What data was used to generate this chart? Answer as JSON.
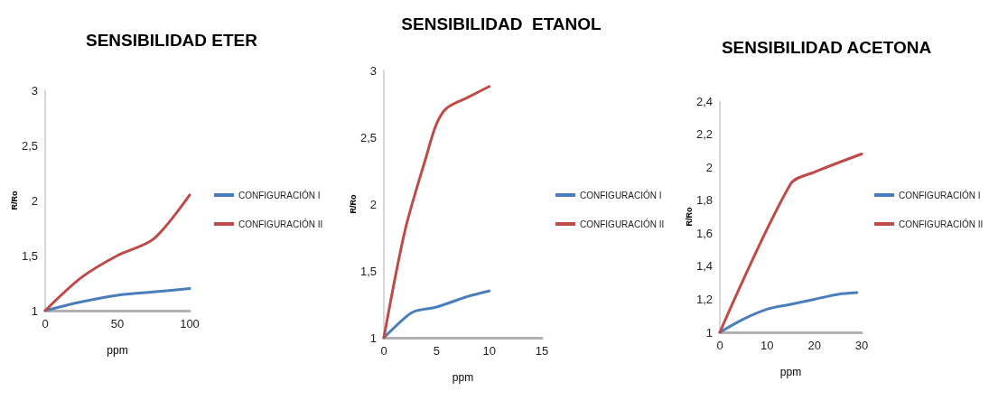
{
  "chart_data": [
    {
      "type": "line",
      "title": "SENSIBILIDAD ETER",
      "xlabel": "ppm",
      "ylabel": "R/Ro",
      "xlim": [
        0,
        100
      ],
      "xticks": [
        0,
        50,
        100
      ],
      "ylim": [
        1,
        3
      ],
      "yticks": [
        1,
        {
          "value": 1.5,
          "label": "1,5"
        },
        2,
        {
          "value": 2.5,
          "label": "2,5"
        },
        3
      ],
      "grid": false,
      "legend": "right",
      "marker": "none",
      "line_style": "solid",
      "series": [
        {
          "name": "CONFIGURACIÓN I",
          "color": "#4a7ebb",
          "x": [
            0,
            25,
            50,
            75,
            100
          ],
          "values": [
            1,
            1.08,
            1.14,
            1.17,
            1.2
          ]
        },
        {
          "name": "CONFIGURACIÓN II",
          "color": "#be4b48",
          "x": [
            0,
            25,
            50,
            75,
            100
          ],
          "values": [
            1,
            1.3,
            1.5,
            1.65,
            2.05
          ]
        }
      ]
    },
    {
      "type": "line",
      "title": "SENSIBILIDAD  ETANOL",
      "xlabel": "ppm",
      "ylabel": "R/Ro",
      "xlim": [
        0,
        15
      ],
      "xticks": [
        0,
        5,
        10,
        15
      ],
      "ylim": [
        1,
        3
      ],
      "yticks": [
        1,
        {
          "value": 1.5,
          "label": "1,5"
        },
        2,
        {
          "value": 2.5,
          "label": "2,5"
        },
        3
      ],
      "grid": false,
      "legend": "right",
      "marker": "none",
      "line_style": "solid",
      "series": [
        {
          "name": "CONFIGURACIÓN I",
          "color": "#4a7ebb",
          "x": [
            0,
            2,
            3,
            5,
            8,
            10
          ],
          "values": [
            1,
            1.15,
            1.2,
            1.23,
            1.31,
            1.35
          ]
        },
        {
          "name": "CONFIGURACIÓN II",
          "color": "#be4b48",
          "x": [
            0,
            2,
            4,
            5,
            6,
            8,
            10
          ],
          "values": [
            1,
            1.8,
            2.35,
            2.6,
            2.72,
            2.8,
            2.88
          ]
        }
      ]
    },
    {
      "type": "line",
      "title": "SENSIBILIDAD ACETONA",
      "xlabel": "ppm",
      "ylabel": "R/Ro",
      "xlim": [
        0,
        30
      ],
      "xticks": [
        0,
        10,
        20,
        30
      ],
      "ylim": [
        1,
        2.4
      ],
      "yticks": [
        1,
        {
          "value": 1.2,
          "label": "1,2"
        },
        {
          "value": 1.4,
          "label": "1,4"
        },
        {
          "value": 1.6,
          "label": "1,6"
        },
        {
          "value": 1.8,
          "label": "1,8"
        },
        2,
        {
          "value": 2.2,
          "label": "2,2"
        },
        {
          "value": 2.4,
          "label": "2,4"
        }
      ],
      "grid": false,
      "legend": "right",
      "marker": "none",
      "line_style": "solid",
      "series": [
        {
          "name": "CONFIGURACIÓN I",
          "color": "#4a7ebb",
          "x": [
            0,
            5,
            10,
            15,
            20,
            25,
            29
          ],
          "values": [
            1,
            1.08,
            1.14,
            1.17,
            1.2,
            1.23,
            1.24
          ]
        },
        {
          "name": "CONFIGURACIÓN II",
          "color": "#be4b48",
          "x": [
            0,
            15,
            20,
            30
          ],
          "values": [
            1,
            1.9,
            1.97,
            2.08
          ]
        }
      ]
    }
  ]
}
